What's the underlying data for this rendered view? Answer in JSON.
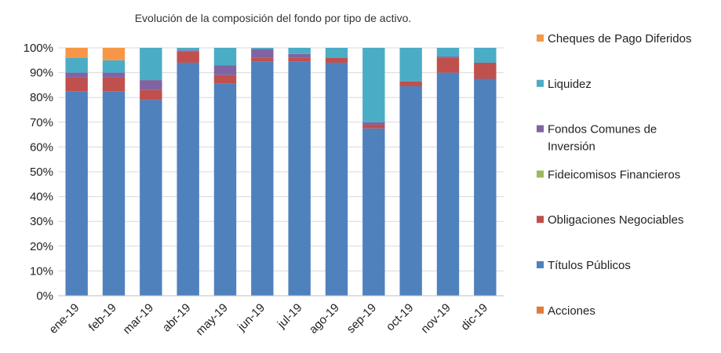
{
  "chart_data": {
    "type": "bar",
    "stacked": true,
    "percent": true,
    "title": "Evolución de la composición del fondo por tipo de activo.",
    "xlabel": "",
    "ylabel": "",
    "ylim": [
      0,
      100
    ],
    "y_ticks": [
      "0%",
      "10%",
      "20%",
      "30%",
      "40%",
      "50%",
      "60%",
      "70%",
      "80%",
      "90%",
      "100%"
    ],
    "grid": true,
    "legend_position": "right",
    "categories": [
      "ene-19",
      "feb-19",
      "mar-19",
      "abr-19",
      "may-19",
      "jun-19",
      "jul-19",
      "ago-19",
      "sep-19",
      "oct-19",
      "nov-19",
      "dic-19"
    ],
    "series": [
      {
        "name": "Acciones",
        "color": "#E07B39",
        "values": [
          0,
          0,
          0,
          0,
          0,
          0,
          0,
          0,
          0,
          0,
          0,
          0
        ]
      },
      {
        "name": "Títulos Públicos",
        "color": "#4F81BD",
        "values": [
          82.5,
          82.5,
          79,
          94,
          85.5,
          94.5,
          94.5,
          94,
          67.5,
          84.5,
          90,
          87.5
        ]
      },
      {
        "name": "Obligaciones Negociables",
        "color": "#C0504D",
        "values": [
          5.5,
          5.5,
          4,
          4.5,
          3.5,
          1.5,
          1.5,
          2,
          1.5,
          2,
          6,
          6.5
        ]
      },
      {
        "name": "Fideicomisos Financieros",
        "color": "#9BBB59",
        "values": [
          0,
          0,
          0,
          0,
          0,
          0,
          0,
          0,
          0,
          0,
          0,
          0
        ]
      },
      {
        "name": "Fondos Comunes de Inversión",
        "color": "#8064A2",
        "values": [
          2,
          2,
          4,
          0.5,
          4,
          3.5,
          1.5,
          0,
          1,
          0,
          0.5,
          0
        ]
      },
      {
        "name": "Liquidez",
        "color": "#4BACC6",
        "values": [
          6,
          5,
          13,
          1,
          7,
          0.5,
          2.5,
          4,
          30,
          13.5,
          3.5,
          6
        ]
      },
      {
        "name": "Cheques de Pago Diferidos",
        "color": "#F79646",
        "values": [
          4,
          5,
          0,
          0,
          0,
          0,
          0,
          0,
          0,
          0,
          0,
          0
        ]
      }
    ],
    "legend": [
      {
        "lines": [
          "Cheques de Pago Diferidos"
        ],
        "color": "#F79646"
      },
      {
        "lines": [
          "Liquidez"
        ],
        "color": "#4BACC6"
      },
      {
        "lines": [
          "Fondos Comunes de",
          "Inversión"
        ],
        "color": "#8064A2"
      },
      {
        "lines": [
          "Fideicomisos Financieros"
        ],
        "color": "#9BBB59"
      },
      {
        "lines": [
          "Obligaciones Negociables"
        ],
        "color": "#C0504D"
      },
      {
        "lines": [
          "Títulos Públicos"
        ],
        "color": "#4F81BD"
      },
      {
        "lines": [
          "Acciones"
        ],
        "color": "#E07B39"
      }
    ]
  }
}
